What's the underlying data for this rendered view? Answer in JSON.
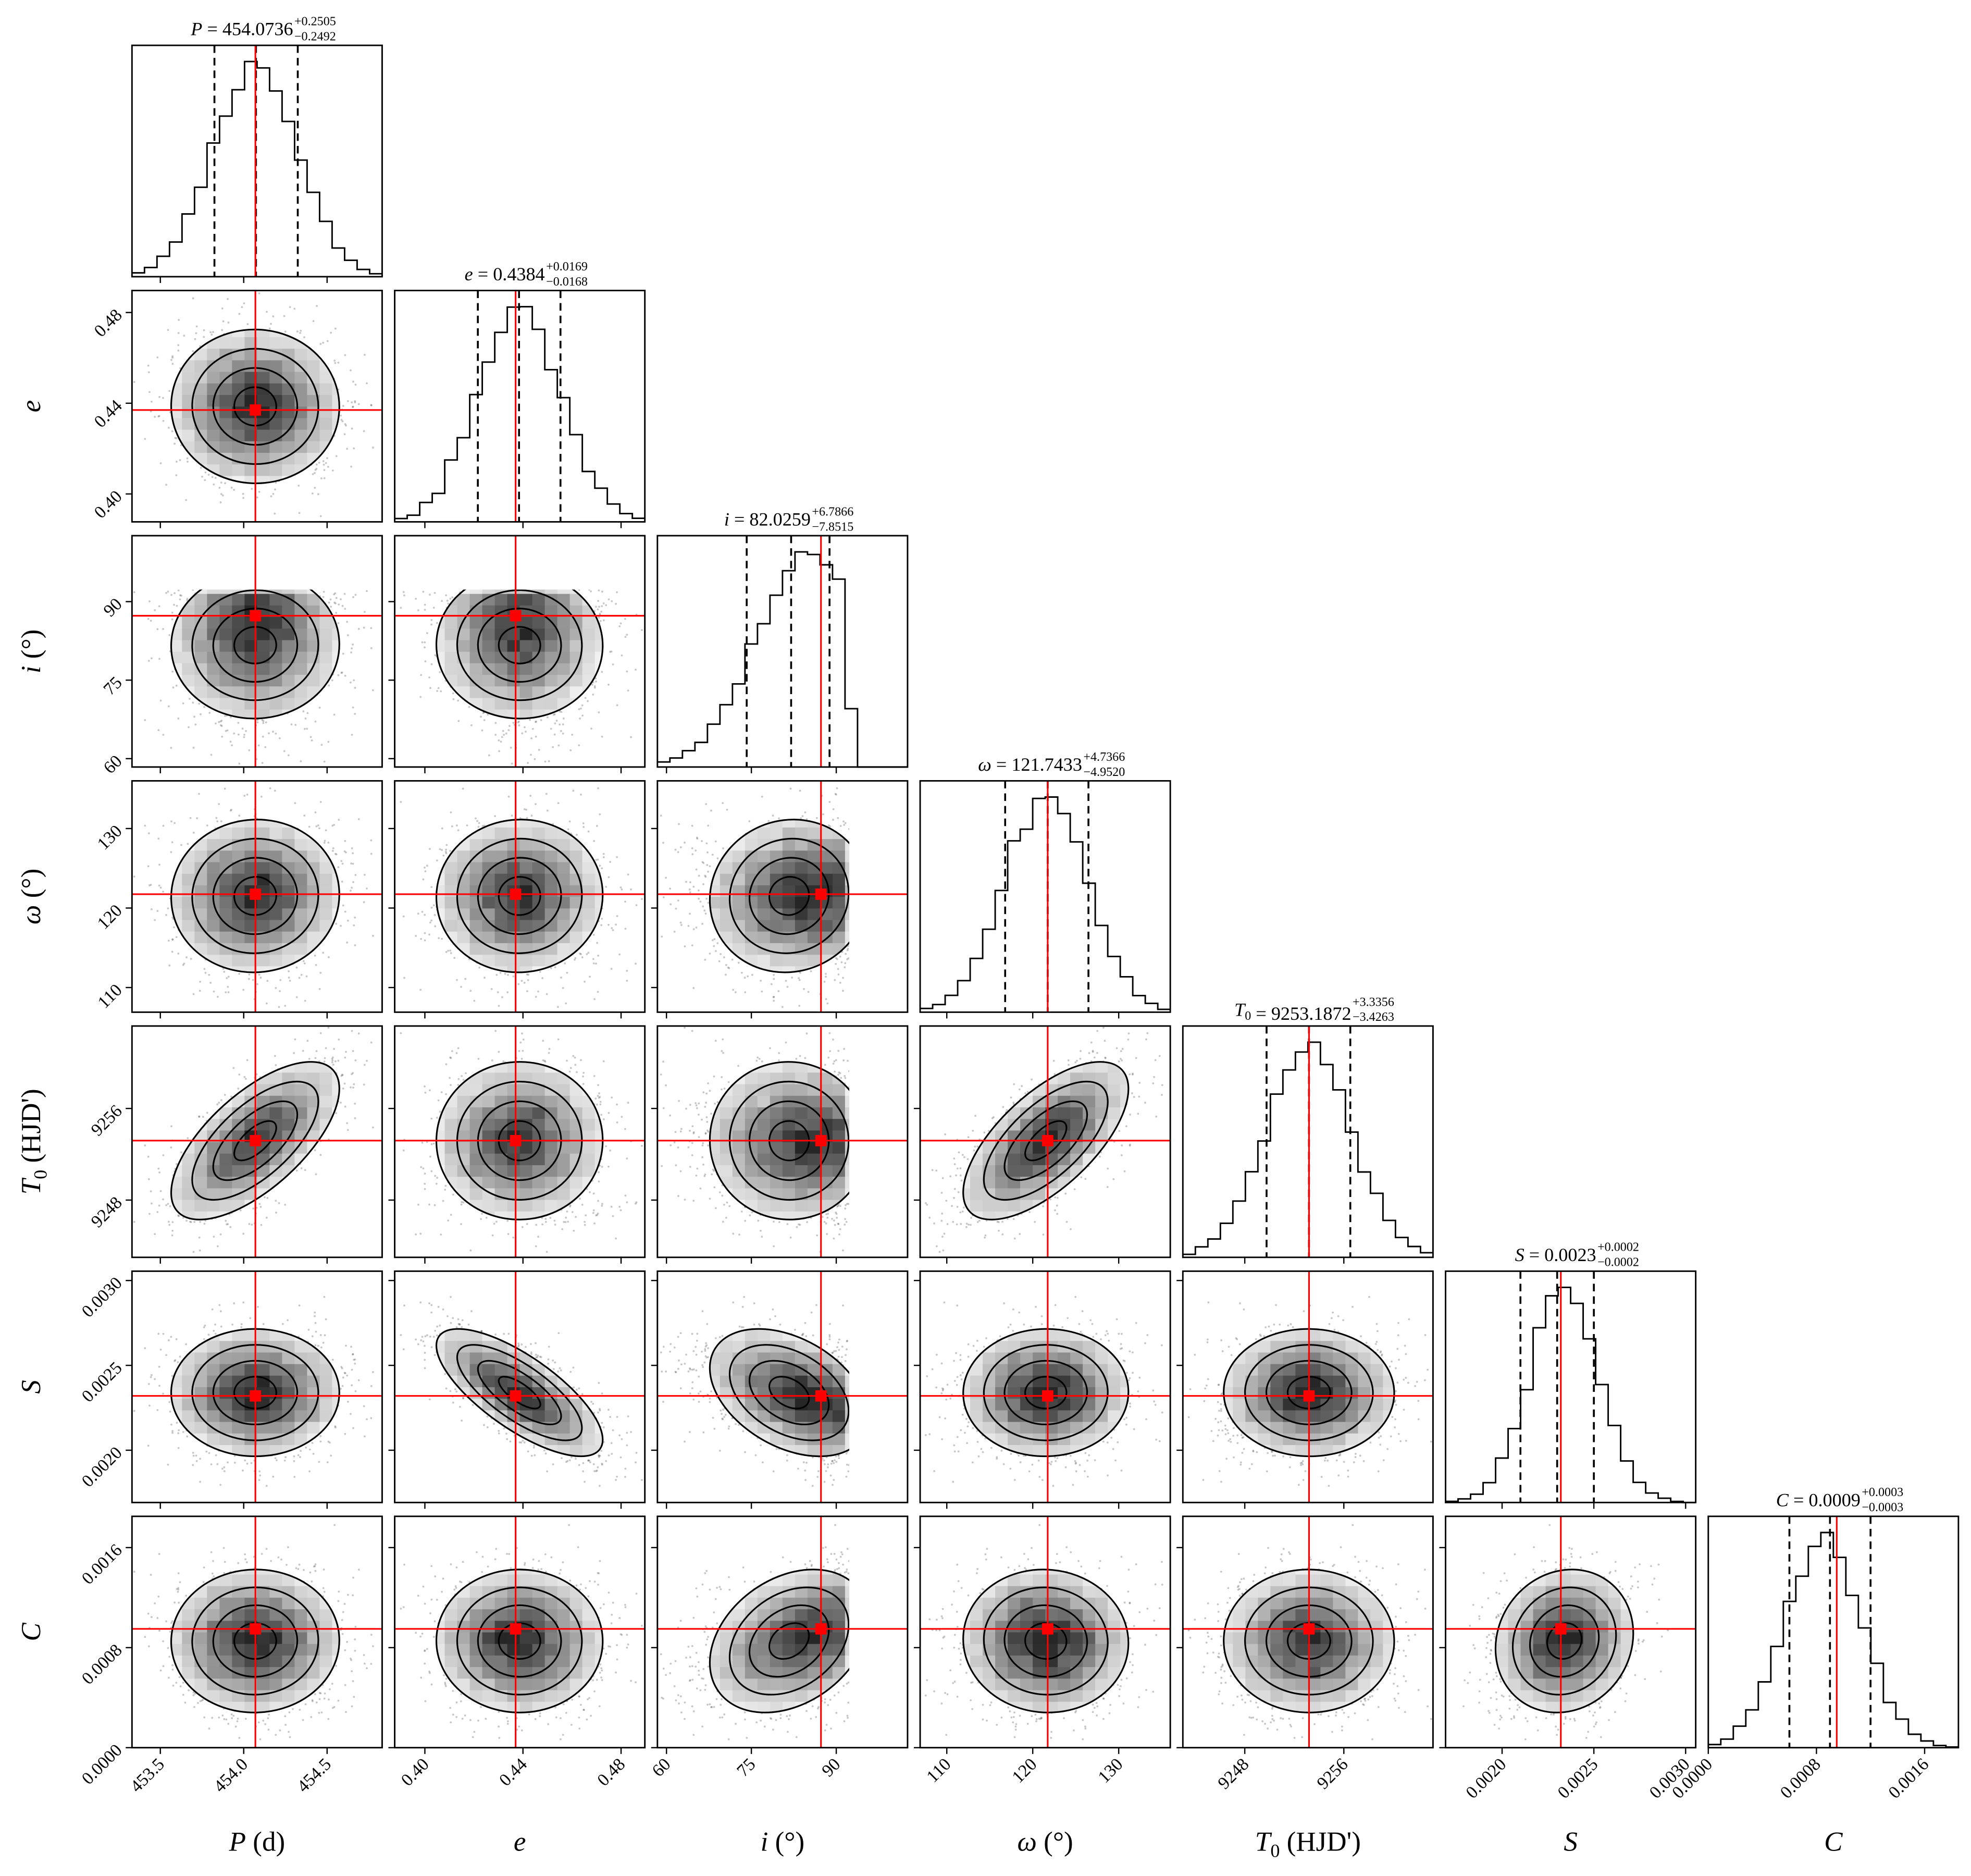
{
  "chart_data": {
    "type": "corner",
    "grid": false,
    "colors": {
      "truth": "#ff0000",
      "hist": "#000000",
      "density": "#000000"
    },
    "parameters": [
      {
        "symbol": "P",
        "sub": "",
        "unit": " (d)",
        "median": "454.0736",
        "plus": "+0.2505",
        "minus": "−0.2492",
        "truth": 454.07,
        "range": [
          453.33,
          454.83
        ],
        "ticks": [
          "453.5",
          "454.0",
          "454.5"
        ],
        "mean": 454.07,
        "sd": 0.25
      },
      {
        "symbol": "e",
        "sub": "",
        "unit": "",
        "median": "0.4384",
        "plus": "+0.0169",
        "minus": "−0.0168",
        "truth": 0.437,
        "range": [
          0.3877,
          0.4897
        ],
        "ticks": [
          "0.40",
          "0.44",
          "0.48"
        ],
        "mean": 0.4384,
        "sd": 0.017
      },
      {
        "symbol": "i",
        "sub": "",
        "unit": " (°)",
        "median": "82.0259",
        "plus": "+6.7866",
        "minus": "−7.8515",
        "truth": 87.3,
        "range": [
          58.4,
          102.6
        ],
        "ticks": [
          "60",
          "75",
          "90"
        ],
        "mean": 85.5,
        "sd": 9.5,
        "upper_limit": 92.3
      },
      {
        "symbol": "ω",
        "sub": "",
        "unit": " (°)",
        "median": "121.7433",
        "plus": "+4.7366",
        "minus": "−4.9520",
        "truth": 121.74,
        "range": [
          106.9,
          136.0
        ],
        "ticks": [
          "110",
          "120",
          "130"
        ],
        "mean": 121.7,
        "sd": 4.85
      },
      {
        "symbol": "T",
        "sub": "0",
        "unit": " (HJD')",
        "median": "9253.1872",
        "plus": "+3.3356",
        "minus": "−3.4263",
        "truth": 9253.19,
        "range": [
          9243.0,
          9263.2
        ],
        "ticks": [
          "9248",
          "9256"
        ],
        "mean": 9253.19,
        "sd": 3.4
      },
      {
        "symbol": "S",
        "sub": "",
        "unit": "",
        "median": "0.0023",
        "plus": "+0.0002",
        "minus": "−0.0002",
        "truth": 0.00232,
        "range": [
          0.001692,
          0.003055
        ],
        "ticks": [
          "0.0020",
          "0.0025",
          "0.0030"
        ],
        "mean": 0.0023,
        "sd": 0.0002
      },
      {
        "symbol": "C",
        "sub": "",
        "unit": "",
        "median": "0.0009",
        "plus": "+0.0003",
        "minus": "−0.0003",
        "truth": 0.00095,
        "range": [
          0.0,
          0.00185
        ],
        "ticks": [
          "0.0000",
          "0.0008",
          "0.0016"
        ],
        "mean": 0.0009,
        "sd": 0.0003
      }
    ],
    "correlations": [
      [
        0,
        4,
        0.65
      ],
      [
        3,
        4,
        0.65
      ],
      [
        1,
        5,
        -0.7
      ],
      [
        2,
        5,
        -0.5
      ],
      [
        2,
        6,
        0.4
      ],
      [
        2,
        3,
        0.1
      ]
    ],
    "hist_bins": 20,
    "contour_sigmas": [
      0.5,
      1,
      1.5,
      2
    ]
  }
}
